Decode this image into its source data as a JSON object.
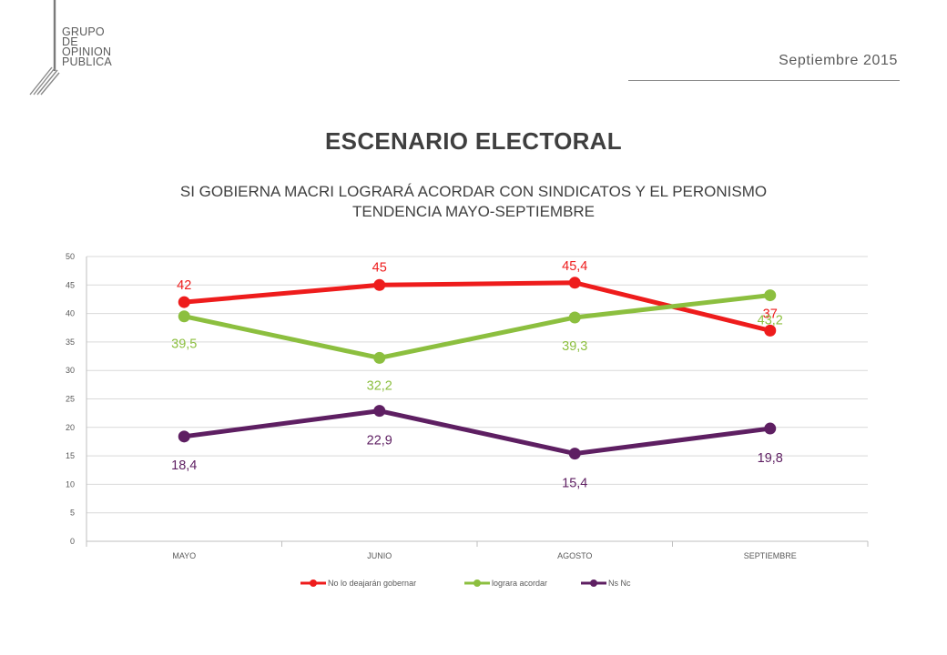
{
  "header": {
    "logo_lines": [
      "GRUPO",
      "DE",
      "OPINION",
      "PUBLICA"
    ],
    "date": "Septiembre 2015"
  },
  "title": "ESCENARIO ELECTORAL",
  "subtitle_lines": [
    "SI GOBIERNA MACRI LOGRARÁ ACORDAR CON SINDICATOS Y EL PERONISMO",
    "TENDENCIA MAYO-SEPTIEMBRE"
  ],
  "chart_data": {
    "type": "line",
    "categories": [
      "MAYO",
      "JUNIO",
      "AGOSTO",
      "SEPTIEMBRE"
    ],
    "ylim": [
      0,
      50
    ],
    "yticks": [
      0,
      5,
      10,
      15,
      20,
      25,
      30,
      35,
      40,
      45,
      50
    ],
    "grid": true,
    "legend_position": "bottom",
    "series": [
      {
        "name": "No lo deajarán gobernar",
        "color": "#ee1c1c",
        "values": [
          42,
          45,
          45.4,
          37
        ],
        "labels": [
          "42",
          "45",
          "45,4",
          "37"
        ]
      },
      {
        "name": "lograra acordar",
        "color": "#8cbf3f",
        "values": [
          39.5,
          32.2,
          39.3,
          43.2
        ],
        "labels": [
          "39,5",
          "32,2",
          "39,3",
          "43,2"
        ]
      },
      {
        "name": "Ns Nc",
        "color": "#5e1f62",
        "values": [
          18.4,
          22.9,
          15.4,
          19.8
        ],
        "labels": [
          "18,4",
          "22,9",
          "15,4",
          "19,8"
        ]
      }
    ]
  }
}
